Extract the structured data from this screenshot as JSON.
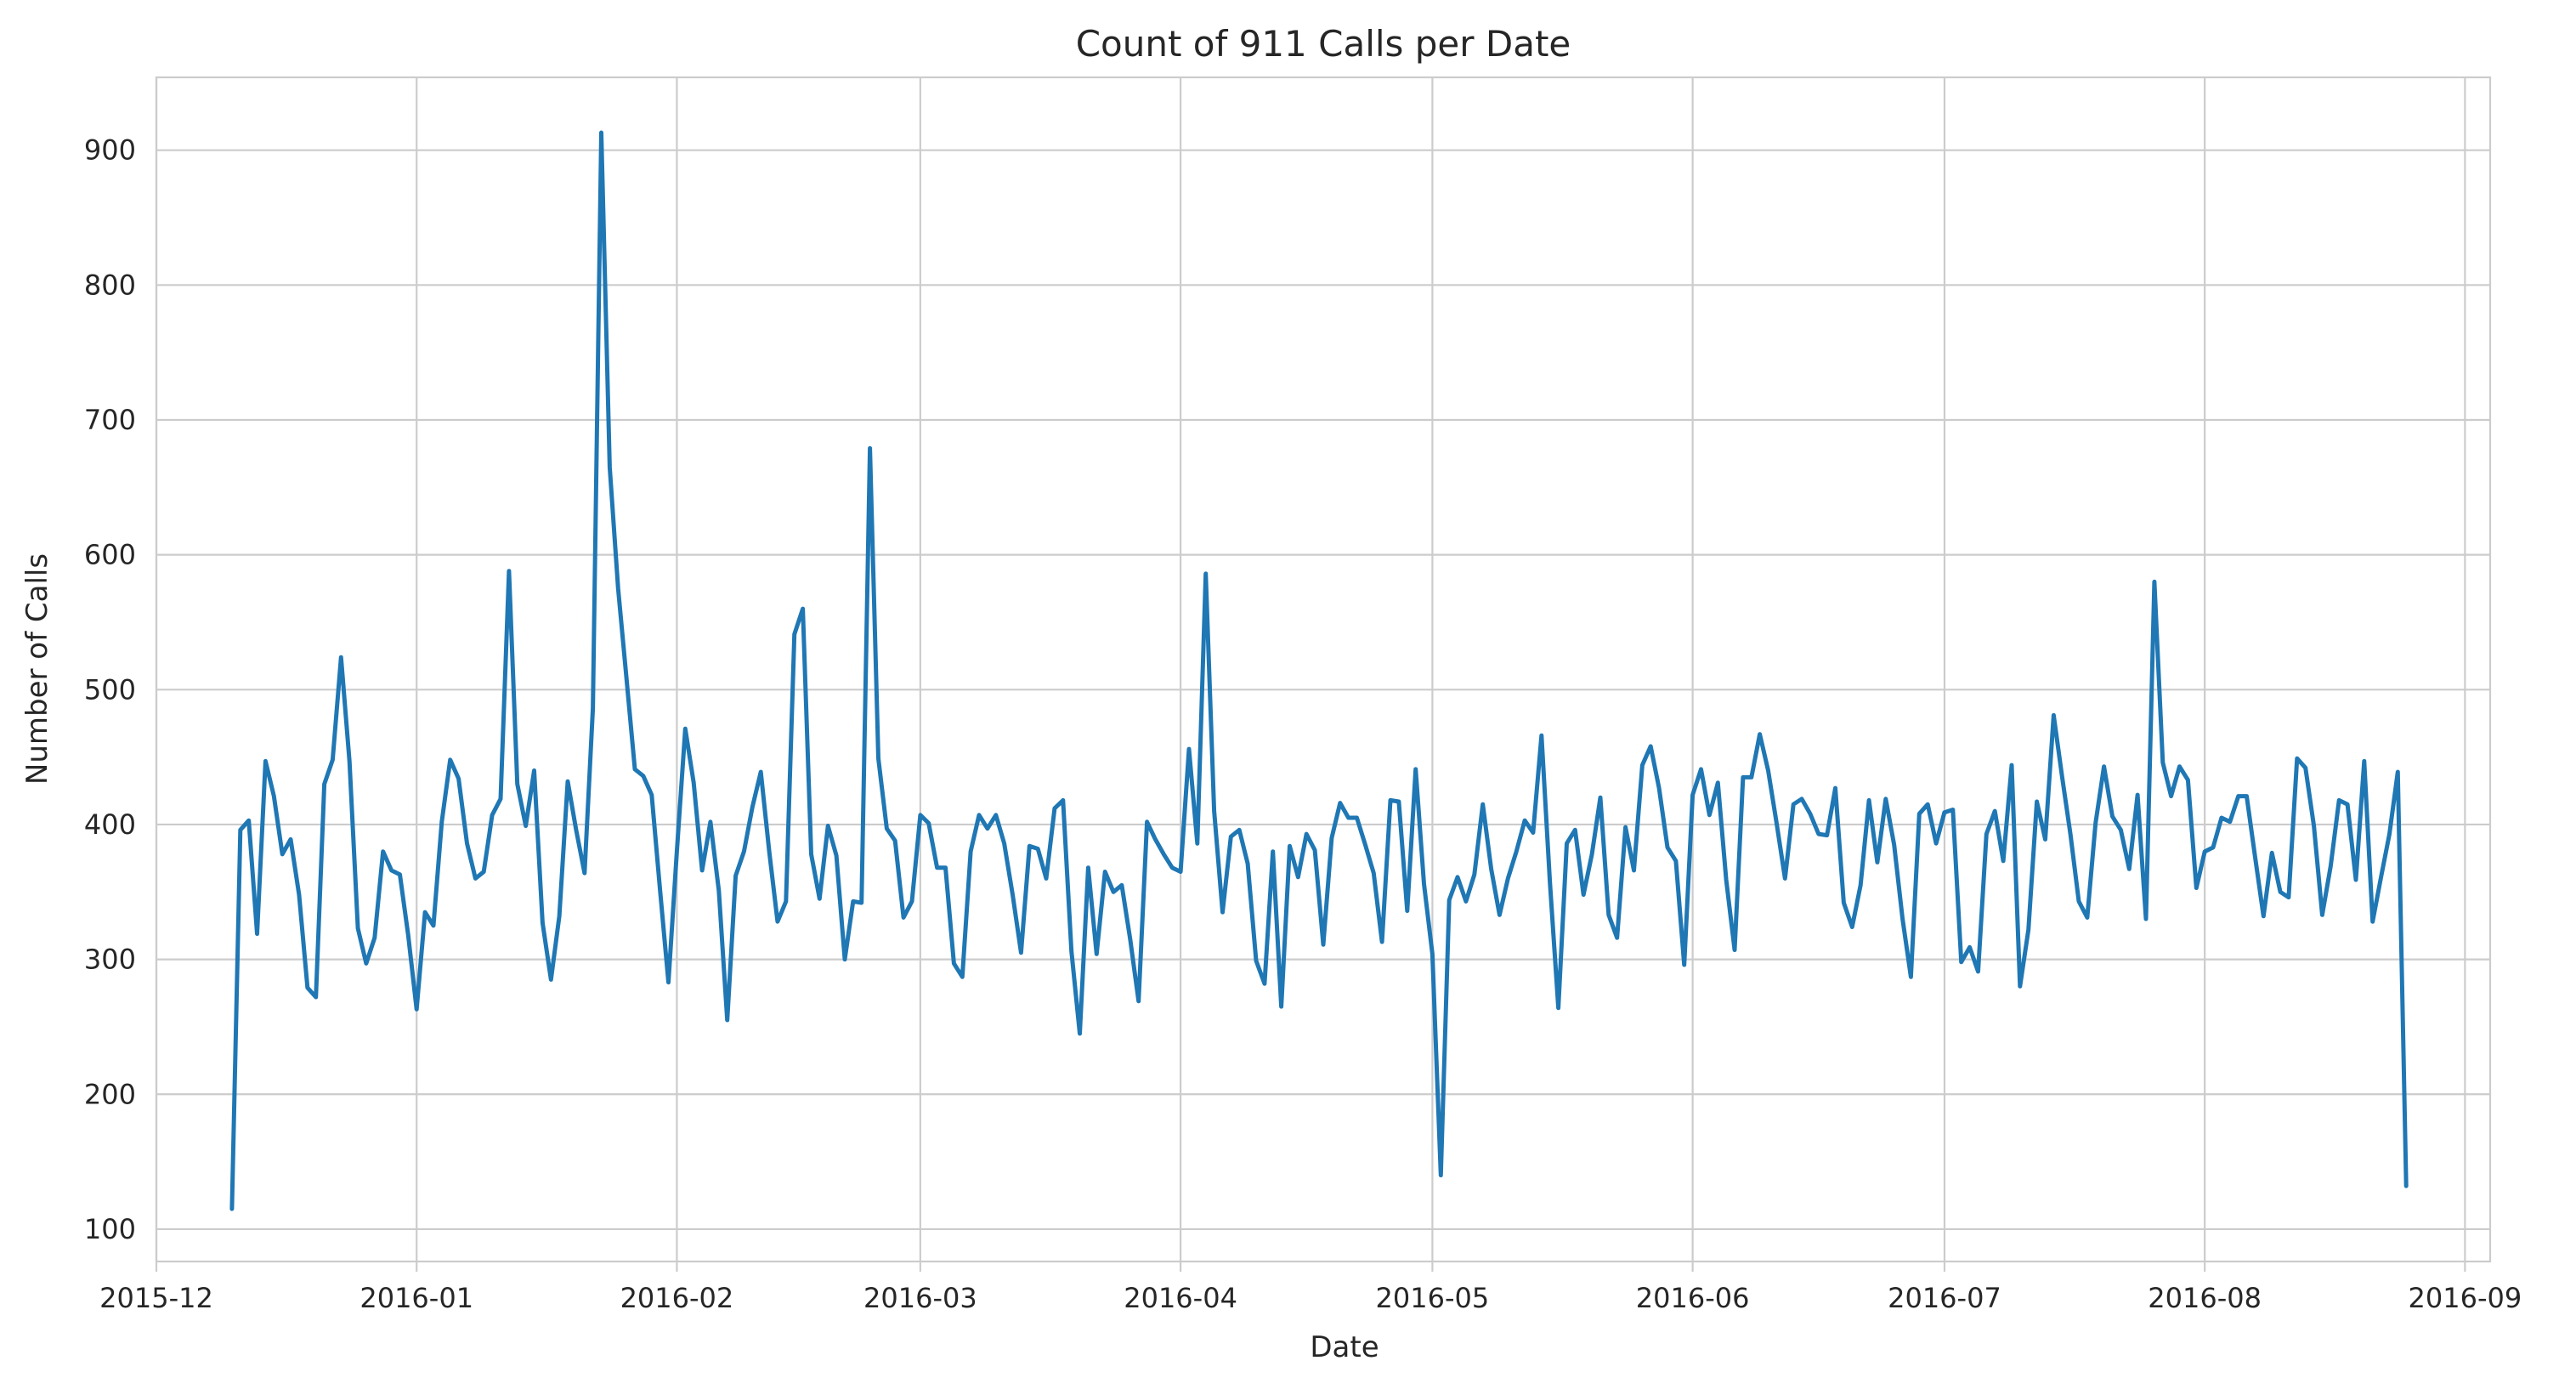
{
  "chart_data": {
    "type": "line",
    "title": "Count of 911 Calls per Date",
    "xlabel": "Date",
    "ylabel": "Number of Calls",
    "xlim": [
      "2015-12-01",
      "2016-09-04"
    ],
    "ylim": [
      76,
      954
    ],
    "grid": true,
    "legend": "none",
    "x_ticks": [
      "2015-12",
      "2016-01",
      "2016-02",
      "2016-03",
      "2016-04",
      "2016-05",
      "2016-06",
      "2016-07",
      "2016-08",
      "2016-09"
    ],
    "y_ticks": [
      "100",
      "200",
      "300",
      "400",
      "500",
      "600",
      "700",
      "800",
      "900"
    ],
    "colors": {
      "line": "#1f77b4",
      "grid": "#cccccc",
      "text": "#262626"
    },
    "series": [
      {
        "start_date": "2015-12-10",
        "values": [
          115,
          396,
          403,
          319,
          447,
          421,
          378,
          389,
          348,
          279,
          272,
          430,
          448,
          524,
          447,
          323,
          297,
          316,
          380,
          366,
          363,
          318,
          263,
          335,
          325,
          402,
          448,
          434,
          386,
          360,
          365,
          407,
          419,
          588,
          430,
          399,
          440,
          327,
          285,
          332,
          432,
          396,
          364,
          486,
          913,
          665,
          575,
          508,
          441,
          436,
          422,
          351,
          283,
          380,
          471,
          431,
          366,
          402,
          351,
          255,
          362,
          380,
          413,
          439,
          380,
          328,
          343,
          541,
          560,
          378,
          345,
          399,
          377,
          300,
          343,
          342,
          679,
          449,
          397,
          388,
          331,
          343,
          407,
          401,
          368,
          368,
          297,
          287,
          380,
          407,
          397,
          407,
          386,
          348,
          305,
          384,
          382,
          360,
          412,
          418,
          306,
          245,
          368,
          304,
          365,
          350,
          355,
          315,
          269,
          402,
          389,
          378,
          368,
          365,
          456,
          386,
          586,
          410,
          335,
          391,
          396,
          371,
          299,
          282,
          380,
          265,
          384,
          361,
          393,
          381,
          311,
          390,
          416,
          405,
          405,
          385,
          364,
          313,
          418,
          417,
          336,
          441,
          356,
          304,
          140,
          344,
          361,
          343,
          363,
          415,
          367,
          333,
          360,
          380,
          403,
          394,
          466,
          357,
          264,
          386,
          396,
          348,
          378,
          420,
          333,
          316,
          398,
          366,
          444,
          458,
          427,
          383,
          373,
          296,
          422,
          441,
          407,
          431,
          359,
          307,
          435,
          435,
          467,
          440,
          401,
          360,
          415,
          419,
          408,
          393,
          392,
          427,
          342,
          324,
          355,
          418,
          372,
          419,
          385,
          330,
          287,
          408,
          415,
          386,
          409,
          411,
          298,
          309,
          291,
          393,
          410,
          373,
          444,
          280,
          322,
          417,
          389,
          481,
          436,
          393,
          343,
          331,
          401,
          443,
          406,
          396,
          367,
          422,
          330,
          580,
          446,
          421,
          443,
          433,
          353,
          380,
          383,
          405,
          402,
          421,
          421,
          376,
          332,
          379,
          350,
          346,
          449,
          442,
          399,
          333,
          369,
          418,
          415,
          359,
          447,
          328,
          361,
          393,
          439,
          132
        ]
      }
    ]
  }
}
